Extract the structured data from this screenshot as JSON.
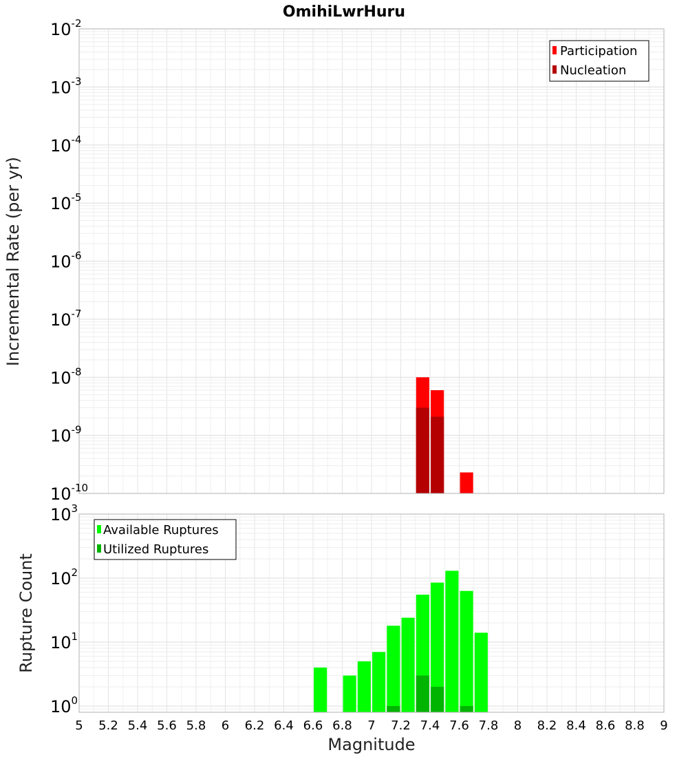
{
  "chart_data": [
    {
      "type": "bar",
      "panel": "incremental-rate",
      "title": "OmihiLwrHuru",
      "xlabel": "Magnitude",
      "ylabel": "Incremental Rate (per yr)",
      "xlim": [
        5,
        9
      ],
      "ylim": [
        1e-10,
        0.01
      ],
      "yscale": "log",
      "y_tick_exponents": [
        "-10",
        "-9",
        "-8",
        "-7",
        "-6",
        "-5",
        "-4",
        "-3",
        "-2"
      ],
      "grid": true,
      "legend_position": "top-right",
      "bar_width": 0.09,
      "series": [
        {
          "name": "Participation",
          "color": "#ff0000",
          "x": [
            7.35,
            7.45,
            7.65
          ],
          "values": [
            1e-08,
            6e-09,
            2.3e-10
          ]
        },
        {
          "name": "Nucleation",
          "color": "#b40000",
          "x": [
            7.35,
            7.45
          ],
          "values": [
            3e-09,
            2.1e-09
          ]
        }
      ]
    },
    {
      "type": "bar",
      "panel": "rupture-count",
      "ylabel": "Rupture Count",
      "xlabel": "Magnitude",
      "xlim": [
        5,
        9
      ],
      "ylim": [
        0.8,
        1000
      ],
      "yscale": "log",
      "y_tick_exponents": [
        "0",
        "1",
        "2",
        "3"
      ],
      "x_ticks": [
        "5",
        "5.2",
        "5.4",
        "5.6",
        "5.8",
        "6",
        "6.2",
        "6.4",
        "6.6",
        "6.8",
        "7",
        "7.2",
        "7.4",
        "7.6",
        "7.8",
        "8",
        "8.2",
        "8.4",
        "8.6",
        "8.8",
        "9"
      ],
      "grid": true,
      "legend_position": "top-left",
      "bar_width": 0.09,
      "series": [
        {
          "name": "Available Ruptures",
          "color": "#00ff00",
          "x": [
            6.65,
            6.85,
            6.95,
            7.05,
            7.15,
            7.25,
            7.35,
            7.45,
            7.55,
            7.65,
            7.75
          ],
          "values": [
            4,
            3,
            5,
            7,
            18,
            24,
            55,
            85,
            130,
            63,
            14
          ]
        },
        {
          "name": "Utilized Ruptures",
          "color": "#00b400",
          "x": [
            7.15,
            7.35,
            7.45,
            7.65
          ],
          "values": [
            1,
            3,
            2,
            1
          ]
        }
      ]
    }
  ]
}
